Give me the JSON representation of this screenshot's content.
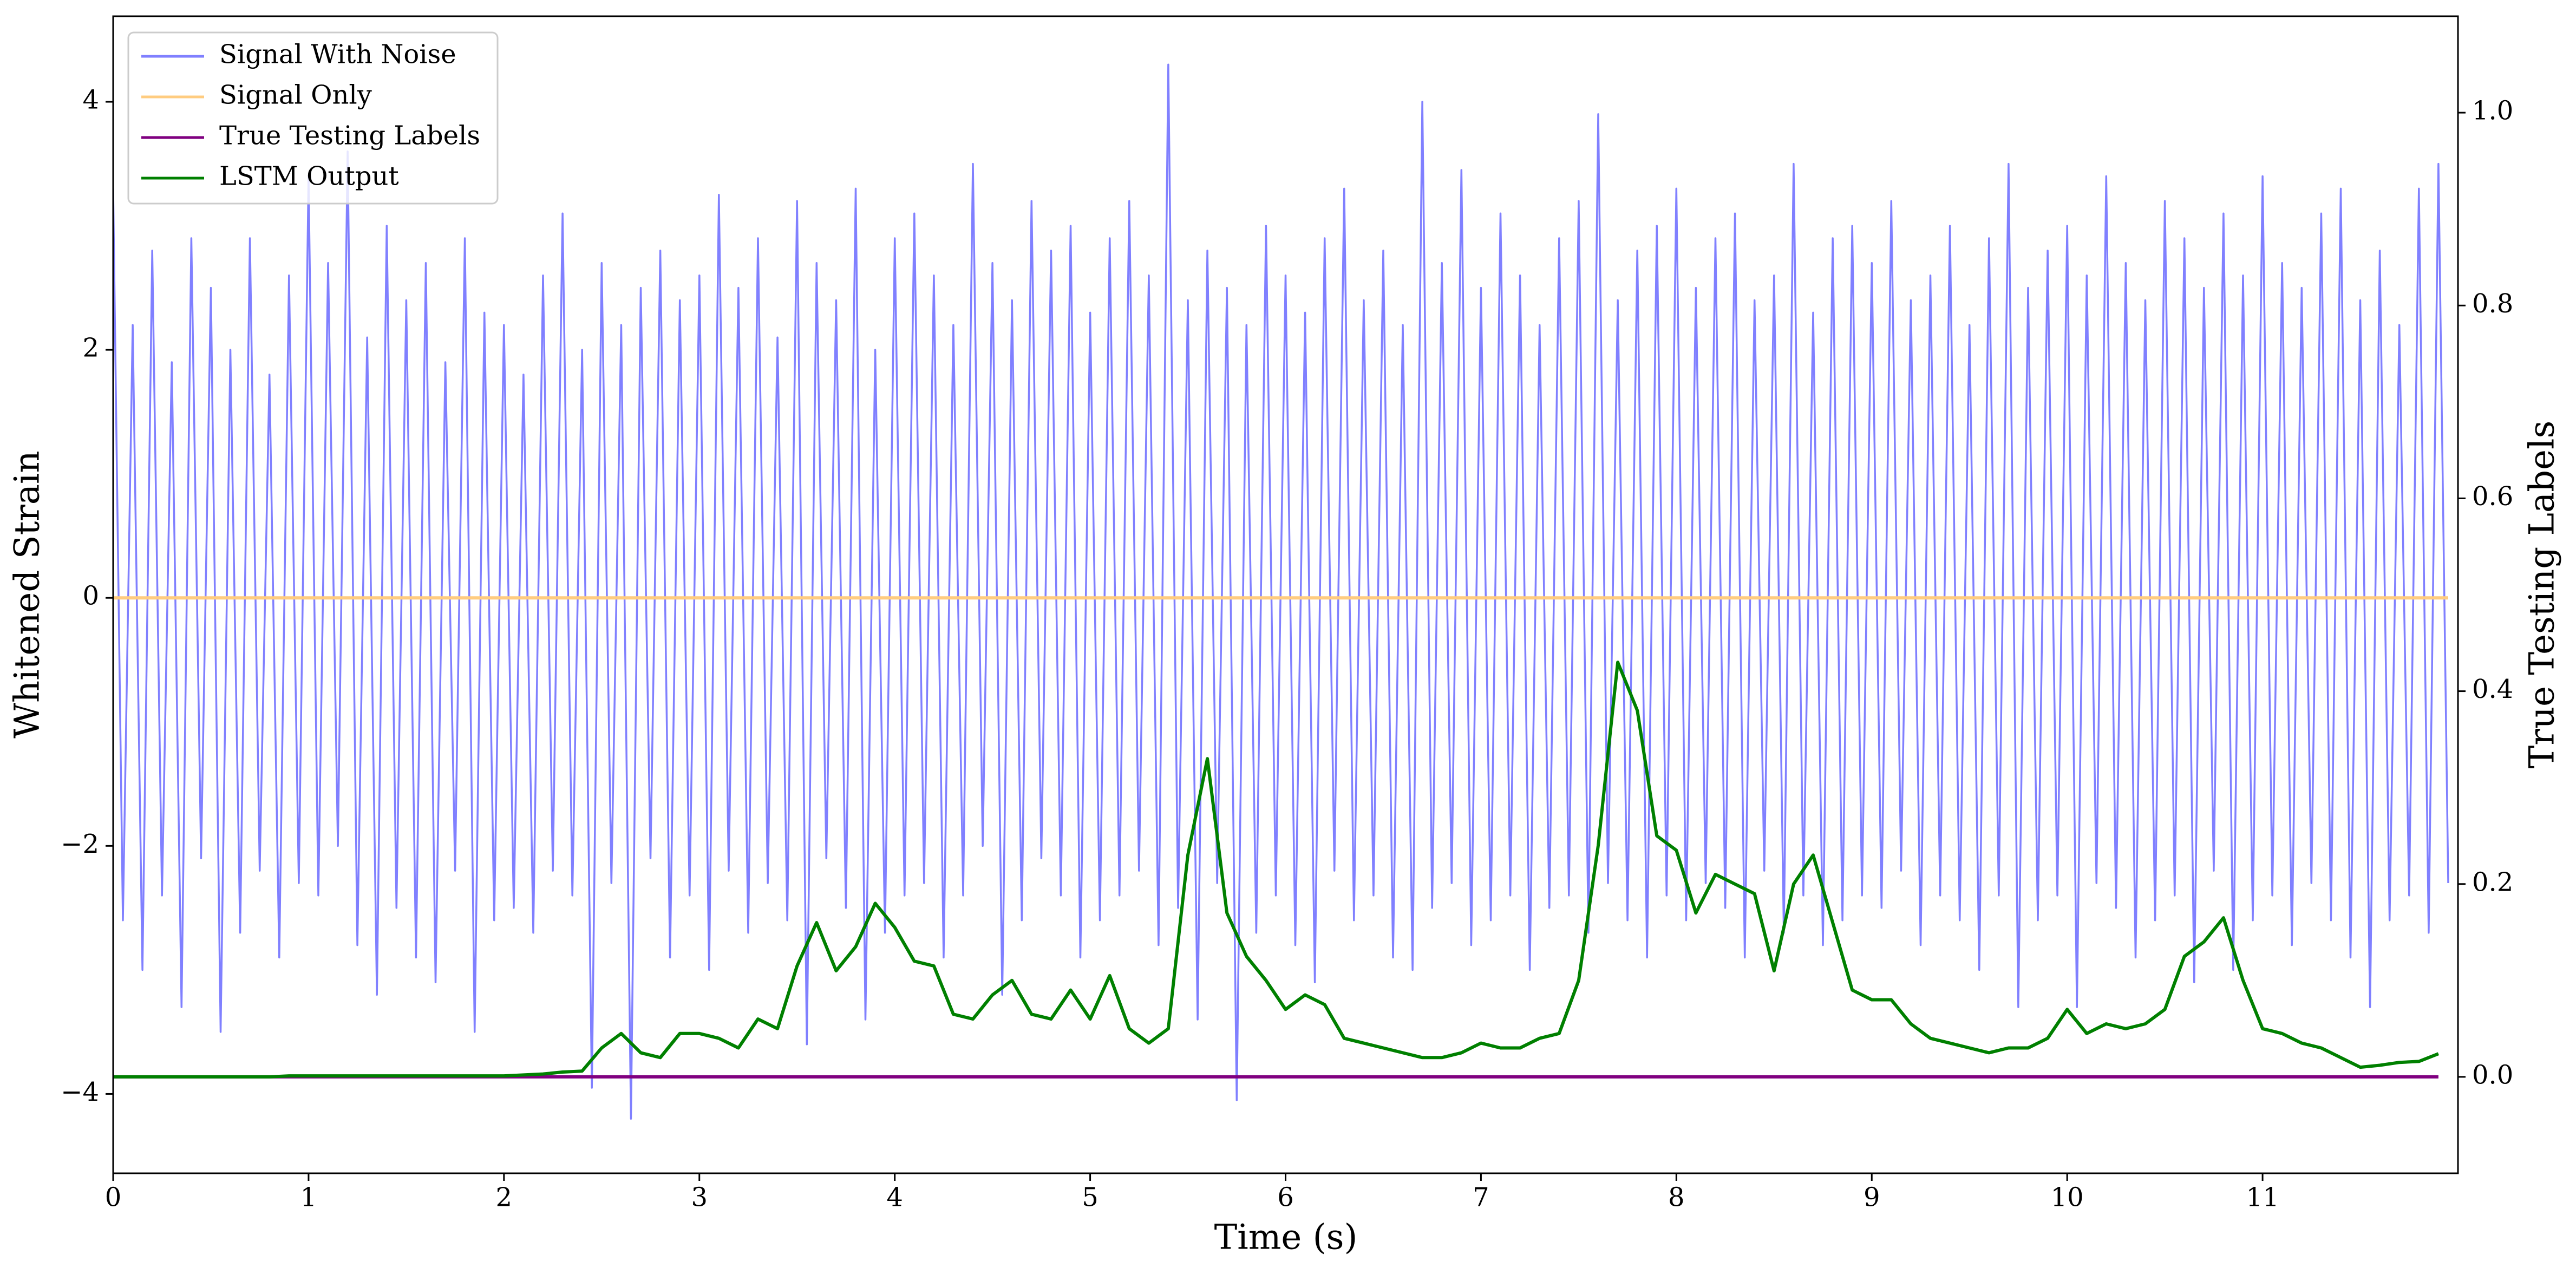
{
  "chart_data": {
    "type": "line",
    "xlabel": "Time (s)",
    "ylabel": "Whitened Strain",
    "y2label": "True Testing Labels",
    "xlim": [
      0,
      12
    ],
    "ylim": [
      -4.64,
      4.69
    ],
    "y2lim": [
      -0.1,
      1.1
    ],
    "xticks": [
      0,
      1,
      2,
      3,
      4,
      5,
      6,
      7,
      8,
      9,
      10,
      11
    ],
    "yticks": [
      {
        "value": -4,
        "label": "−4"
      },
      {
        "value": -2,
        "label": "−2"
      },
      0,
      2,
      4
    ],
    "y2ticks": [
      {
        "value": 0,
        "label": "0.0"
      },
      {
        "value": 0.2,
        "label": "0.2"
      },
      {
        "value": 0.4,
        "label": "0.4"
      },
      {
        "value": 0.6,
        "label": "0.6"
      },
      {
        "value": 0.8,
        "label": "0.8"
      },
      {
        "value": 1.0,
        "label": "1.0"
      }
    ],
    "legend": "upper left",
    "series": [
      {
        "name": "Signal With Noise",
        "color": "#8080ff",
        "x": [
          0,
          0.05,
          0.1,
          0.15,
          0.2,
          0.25,
          0.3,
          0.35,
          0.4,
          0.45,
          0.5,
          0.55,
          0.6,
          0.65,
          0.7,
          0.75,
          0.8,
          0.85,
          0.9,
          0.95,
          1,
          1.05,
          1.1,
          1.15,
          1.2,
          1.25,
          1.3,
          1.35,
          1.4,
          1.45,
          1.5,
          1.55,
          1.6,
          1.65,
          1.7,
          1.75,
          1.8,
          1.85,
          1.9,
          1.95,
          2,
          2.05,
          2.1,
          2.15,
          2.2,
          2.25,
          2.3,
          2.35,
          2.4,
          2.45,
          2.5,
          2.55,
          2.6,
          2.65,
          2.7,
          2.75,
          2.8,
          2.85,
          2.9,
          2.95,
          3,
          3.05,
          3.1,
          3.15,
          3.2,
          3.25,
          3.3,
          3.35,
          3.4,
          3.45,
          3.5,
          3.55,
          3.6,
          3.65,
          3.7,
          3.75,
          3.8,
          3.85,
          3.9,
          3.95,
          4,
          4.05,
          4.1,
          4.15,
          4.2,
          4.25,
          4.3,
          4.35,
          4.4,
          4.45,
          4.5,
          4.55,
          4.6,
          4.65,
          4.7,
          4.75,
          4.8,
          4.85,
          4.9,
          4.95,
          5,
          5.05,
          5.1,
          5.15,
          5.2,
          5.25,
          5.3,
          5.35,
          5.4,
          5.45,
          5.5,
          5.55,
          5.6,
          5.65,
          5.7,
          5.75,
          5.8,
          5.85,
          5.9,
          5.95,
          6,
          6.05,
          6.1,
          6.15,
          6.2,
          6.25,
          6.3,
          6.35,
          6.4,
          6.45,
          6.5,
          6.55,
          6.6,
          6.65,
          6.7,
          6.75,
          6.8,
          6.85,
          6.9,
          6.95,
          7,
          7.05,
          7.1,
          7.15,
          7.2,
          7.25,
          7.3,
          7.35,
          7.4,
          7.45,
          7.5,
          7.55,
          7.6,
          7.65,
          7.7,
          7.75,
          7.8,
          7.85,
          7.9,
          7.95,
          8,
          8.05,
          8.1,
          8.15,
          8.2,
          8.25,
          8.3,
          8.35,
          8.4,
          8.45,
          8.5,
          8.55,
          8.6,
          8.65,
          8.7,
          8.75,
          8.8,
          8.85,
          8.9,
          8.95,
          9,
          9.05,
          9.1,
          9.15,
          9.2,
          9.25,
          9.3,
          9.35,
          9.4,
          9.45,
          9.5,
          9.55,
          9.6,
          9.65,
          9.7,
          9.75,
          9.8,
          9.85,
          9.9,
          9.95,
          10,
          10.05,
          10.1,
          10.15,
          10.2,
          10.25,
          10.3,
          10.35,
          10.4,
          10.45,
          10.5,
          10.55,
          10.6,
          10.65,
          10.7,
          10.75,
          10.8,
          10.85,
          10.9,
          10.95,
          11,
          11.05,
          11.1,
          11.15,
          11.2,
          11.25,
          11.3,
          11.35,
          11.4,
          11.45,
          11.5,
          11.55,
          11.6,
          11.65,
          11.7,
          11.75,
          11.8,
          11.85,
          11.9,
          11.95
        ],
        "values": [
          3.3,
          -2.6,
          2.2,
          -3.0,
          2.8,
          -2.4,
          1.9,
          -3.3,
          2.9,
          -2.1,
          2.5,
          -3.5,
          2.0,
          -2.7,
          2.9,
          -2.2,
          1.8,
          -2.9,
          2.6,
          -2.3,
          3.4,
          -2.4,
          2.7,
          -2.0,
          3.6,
          -2.8,
          2.1,
          -3.2,
          3.0,
          -2.5,
          2.4,
          -2.9,
          2.7,
          -3.1,
          1.9,
          -2.2,
          2.9,
          -3.5,
          2.3,
          -2.6,
          2.2,
          -2.5,
          1.8,
          -2.7,
          2.6,
          -2.2,
          3.1,
          -2.4,
          2.0,
          -3.95,
          2.7,
          -2.3,
          2.2,
          -4.2,
          2.5,
          -2.1,
          2.8,
          -2.9,
          2.4,
          -2.4,
          2.6,
          -3.0,
          3.25,
          -2.2,
          2.5,
          -2.7,
          2.9,
          -2.3,
          2.1,
          -2.6,
          3.2,
          -3.6,
          2.7,
          -2.1,
          2.4,
          -2.5,
          3.3,
          -3.4,
          2.0,
          -2.7,
          2.9,
          -2.4,
          3.1,
          -2.3,
          2.6,
          -2.9,
          2.2,
          -2.4,
          3.5,
          -2.0,
          2.7,
          -3.2,
          2.4,
          -2.6,
          3.2,
          -2.1,
          2.8,
          -2.4,
          3.0,
          -2.9,
          2.3,
          -2.6,
          2.9,
          -2.4,
          3.2,
          -2.2,
          2.6,
          -2.8,
          4.3,
          -2.5,
          2.4,
          -3.4,
          2.8,
          -2.3,
          2.5,
          -4.05,
          2.2,
          -2.7,
          3.0,
          -2.4,
          2.6,
          -2.8,
          2.3,
          -3.1,
          2.9,
          -2.2,
          3.3,
          -2.6,
          2.4,
          -2.4,
          2.8,
          -2.9,
          2.2,
          -3.0,
          4.0,
          -2.5,
          2.7,
          -2.3,
          3.45,
          -2.8,
          2.5,
          -2.6,
          3.1,
          -2.4,
          2.6,
          -3.0,
          2.2,
          -2.5,
          2.9,
          -2.4,
          3.2,
          -2.7,
          3.9,
          -2.3,
          2.4,
          -2.6,
          2.8,
          -2.9,
          3.0,
          -2.4,
          3.3,
          -2.6,
          2.5,
          -2.3,
          2.9,
          -2.5,
          3.1,
          -2.9,
          2.4,
          -2.2,
          2.6,
          -2.7,
          3.5,
          -2.4,
          2.3,
          -2.8,
          2.9,
          -2.6,
          3.0,
          -2.4,
          2.7,
          -2.5,
          3.2,
          -2.2,
          2.4,
          -2.8,
          2.6,
          -2.4,
          3.0,
          -2.6,
          2.2,
          -3.0,
          2.9,
          -2.4,
          3.5,
          -3.3,
          2.5,
          -2.6,
          2.8,
          -2.4,
          3.0,
          -3.3,
          2.6,
          -2.3,
          3.4,
          -2.5,
          2.7,
          -2.9,
          2.4,
          -2.6,
          3.2,
          -2.4,
          2.9,
          -3.1,
          2.5,
          -2.2,
          3.1,
          -3.0,
          2.6,
          -2.6,
          3.4,
          -2.4,
          2.7,
          -2.8,
          2.5,
          -2.3,
          3.1,
          -2.6,
          3.3,
          -2.9,
          2.4,
          -3.3,
          2.8,
          -2.6,
          2.2,
          -2.4,
          3.3,
          -2.7,
          3.5,
          -2.3
        ]
      },
      {
        "name": "Signal Only",
        "color": "#ffcc80",
        "x": [
          0,
          11.95
        ],
        "values": [
          0,
          0
        ]
      },
      {
        "name": "True Testing Labels",
        "color": "#800080",
        "axis": "y2",
        "x": [
          0,
          11.9
        ],
        "values": [
          0,
          0
        ]
      },
      {
        "name": "LSTM Output",
        "color": "#008000",
        "axis": "y2",
        "x": [
          0,
          0.1,
          0.2,
          0.3,
          0.4,
          0.5,
          0.6,
          0.7,
          0.8,
          0.9,
          1,
          1.1,
          1.2,
          1.3,
          1.4,
          1.5,
          1.6,
          1.7,
          1.8,
          1.9,
          2,
          2.1,
          2.2,
          2.3,
          2.4,
          2.5,
          2.6,
          2.7,
          2.8,
          2.9,
          3,
          3.1,
          3.2,
          3.3,
          3.4,
          3.5,
          3.6,
          3.7,
          3.8,
          3.9,
          4,
          4.1,
          4.2,
          4.3,
          4.4,
          4.5,
          4.6,
          4.7,
          4.8,
          4.9,
          5,
          5.1,
          5.2,
          5.3,
          5.4,
          5.5,
          5.6,
          5.7,
          5.8,
          5.9,
          6,
          6.1,
          6.2,
          6.3,
          6.4,
          6.5,
          6.6,
          6.7,
          6.8,
          6.9,
          7,
          7.1,
          7.2,
          7.3,
          7.4,
          7.5,
          7.6,
          7.7,
          7.8,
          7.9,
          8,
          8.1,
          8.2,
          8.3,
          8.4,
          8.5,
          8.6,
          8.7,
          8.8,
          8.9,
          9,
          9.1,
          9.2,
          9.3,
          9.4,
          9.5,
          9.6,
          9.7,
          9.8,
          9.9,
          10,
          10.1,
          10.2,
          10.3,
          10.4,
          10.5,
          10.6,
          10.7,
          10.8,
          10.9,
          11,
          11.1,
          11.2,
          11.3,
          11.4,
          11.5,
          11.6,
          11.7,
          11.8,
          11.9
        ],
        "values": [
          0,
          0,
          0,
          0,
          0,
          0,
          0,
          0,
          0,
          0.001,
          0.001,
          0.001,
          0.001,
          0.001,
          0.001,
          0.001,
          0.001,
          0.001,
          0.001,
          0.001,
          0.001,
          0.002,
          0.003,
          0.005,
          0.006,
          0.03,
          0.045,
          0.025,
          0.02,
          0.045,
          0.045,
          0.04,
          0.03,
          0.06,
          0.05,
          0.115,
          0.16,
          0.11,
          0.135,
          0.18,
          0.155,
          0.12,
          0.115,
          0.065,
          0.06,
          0.085,
          0.1,
          0.065,
          0.06,
          0.09,
          0.06,
          0.105,
          0.05,
          0.035,
          0.05,
          0.23,
          0.33,
          0.17,
          0.125,
          0.1,
          0.07,
          0.085,
          0.075,
          0.04,
          0.035,
          0.03,
          0.025,
          0.02,
          0.02,
          0.025,
          0.035,
          0.03,
          0.03,
          0.04,
          0.045,
          0.1,
          0.24,
          0.43,
          0.38,
          0.25,
          0.235,
          0.17,
          0.21,
          0.2,
          0.19,
          0.11,
          0.2,
          0.23,
          0.16,
          0.09,
          0.08,
          0.08,
          0.055,
          0.04,
          0.035,
          0.03,
          0.025,
          0.03,
          0.03,
          0.04,
          0.07,
          0.045,
          0.055,
          0.05,
          0.055,
          0.07,
          0.125,
          0.14,
          0.165,
          0.1,
          0.05,
          0.045,
          0.035,
          0.03,
          0.02,
          0.01,
          0.012,
          0.015,
          0.016,
          0.024
        ]
      }
    ]
  }
}
